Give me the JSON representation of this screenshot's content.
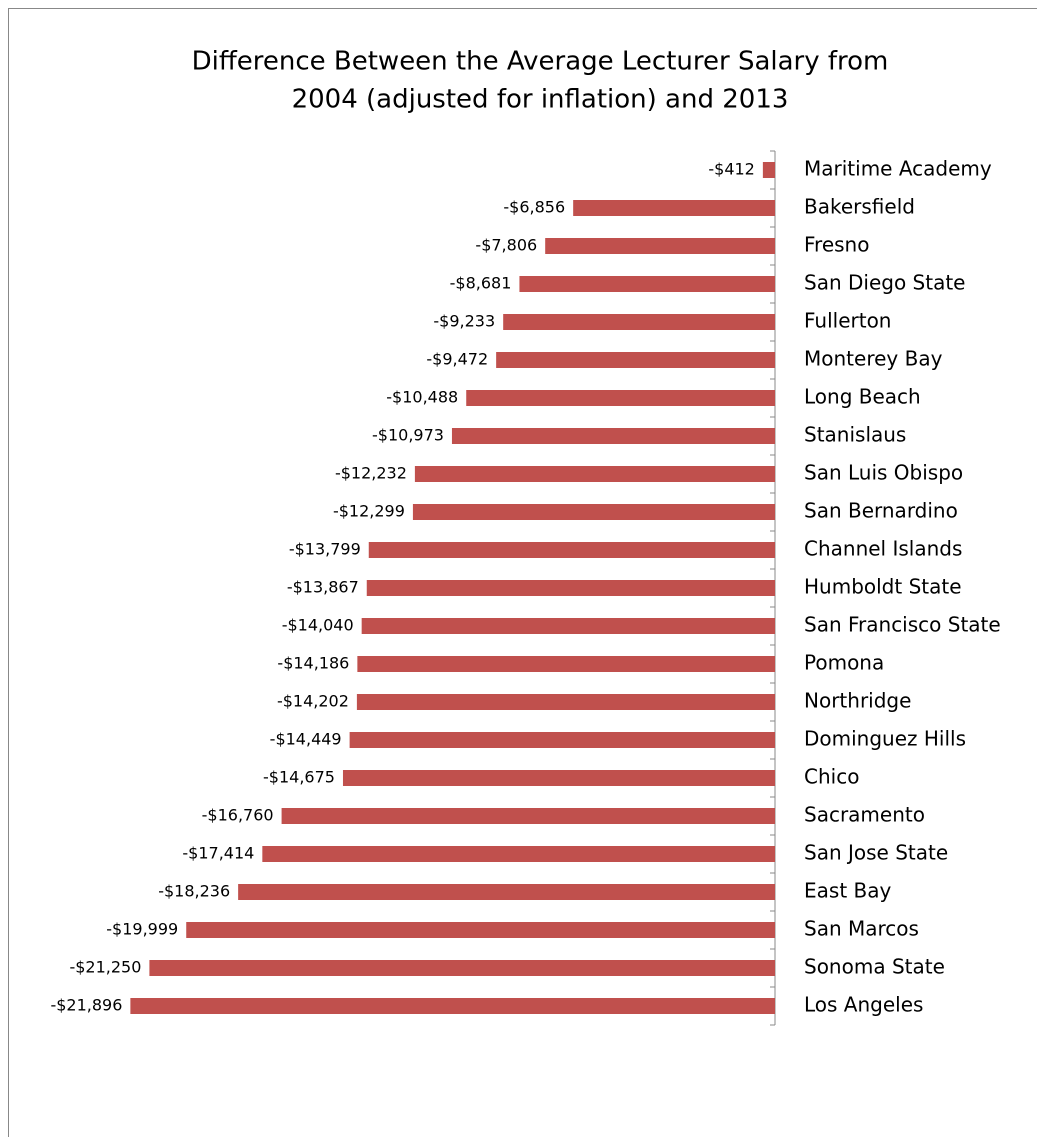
{
  "chart_data": {
    "type": "bar",
    "orientation": "horizontal",
    "title": [
      "Difference Between the Average Lecturer Salary from",
      "2004 (adjusted for inflation) and 2013"
    ],
    "categories": [
      "Maritime Academy",
      "Bakersfield",
      "Fresno",
      "San Diego State",
      "Fullerton",
      "Monterey Bay",
      "Long Beach",
      "Stanislaus",
      "San Luis Obispo",
      "San Bernardino",
      "Channel Islands",
      "Humboldt State",
      "San Francisco State",
      "Pomona",
      "Northridge",
      "Dominguez Hills",
      "Chico",
      "Sacramento",
      "San Jose State",
      "East Bay",
      "San Marcos",
      "Sonoma State",
      "Los Angeles"
    ],
    "values": [
      -412,
      -6856,
      -7806,
      -8681,
      -9233,
      -9472,
      -10488,
      -10973,
      -12232,
      -12299,
      -13799,
      -13867,
      -14040,
      -14186,
      -14202,
      -14449,
      -14675,
      -16760,
      -17414,
      -18236,
      -19999,
      -21250,
      -21896
    ],
    "value_labels": [
      "-$412",
      "-$6,856",
      "-$7,806",
      "-$8,681",
      "-$9,233",
      "-$9,472",
      "-$10,488",
      "-$10,973",
      "-$12,232",
      "-$12,299",
      "-$13,799",
      "-$13,867",
      "-$14,040",
      "-$14,186",
      "-$14,202",
      "-$14,449",
      "-$14,675",
      "-$16,760",
      "-$17,414",
      "-$18,236",
      "-$19,999",
      "-$21,250",
      "-$21,896"
    ],
    "color": "#c0504d",
    "xlim": [
      -25000,
      0
    ]
  }
}
